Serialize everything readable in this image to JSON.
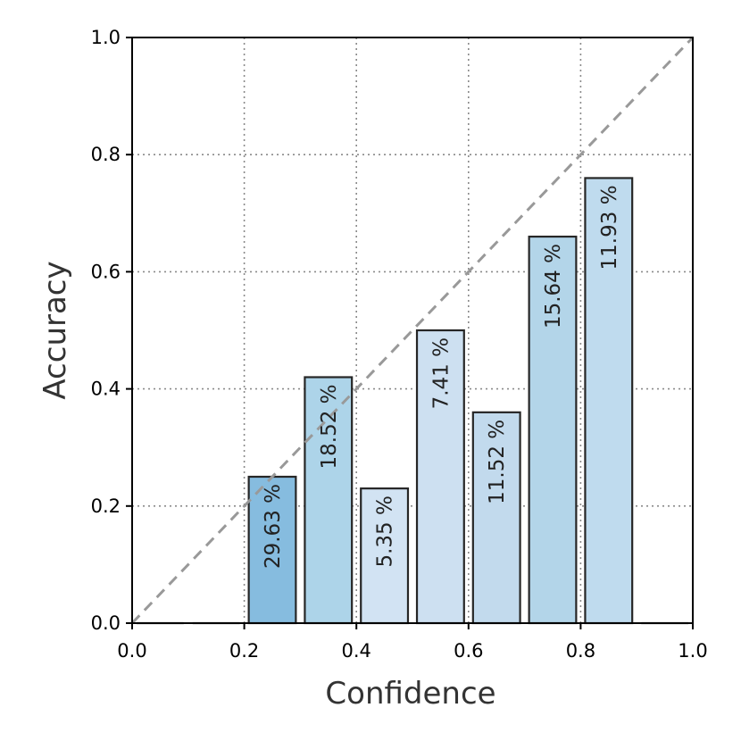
{
  "chart_data": {
    "type": "bar",
    "xlabel": "Confidence",
    "ylabel": "Accuracy",
    "xlim": [
      0.0,
      1.0
    ],
    "ylim": [
      0.0,
      1.0
    ],
    "grid": true,
    "reference_line": "perfect calibration diagonal (y = x), dashed gray",
    "x_ticks": [
      "0.0",
      "0.2",
      "0.4",
      "0.6",
      "0.8",
      "1.0"
    ],
    "y_ticks": [
      "0.0",
      "0.2",
      "0.4",
      "0.6",
      "0.8",
      "1.0"
    ],
    "bin_width": 0.1,
    "bars": [
      {
        "bin_start": 0.0,
        "bin_end": 0.1,
        "accuracy": 0.0,
        "label": "",
        "color": "#ffffff"
      },
      {
        "bin_start": 0.1,
        "bin_end": 0.2,
        "accuracy": 0.0,
        "label": "",
        "color": "#ffffff"
      },
      {
        "bin_start": 0.2,
        "bin_end": 0.3,
        "accuracy": 0.25,
        "label": "29.63 %",
        "color": "#86bcdf"
      },
      {
        "bin_start": 0.3,
        "bin_end": 0.4,
        "accuracy": 0.42,
        "label": "18.52 %",
        "color": "#add4e9"
      },
      {
        "bin_start": 0.4,
        "bin_end": 0.5,
        "accuracy": 0.23,
        "label": "5.35 %",
        "color": "#d2e3f3"
      },
      {
        "bin_start": 0.5,
        "bin_end": 0.6,
        "accuracy": 0.5,
        "label": "7.41 %",
        "color": "#cde0f1"
      },
      {
        "bin_start": 0.6,
        "bin_end": 0.7,
        "accuracy": 0.36,
        "label": "11.52 %",
        "color": "#c2daed"
      },
      {
        "bin_start": 0.7,
        "bin_end": 0.8,
        "accuracy": 0.66,
        "label": "15.64 %",
        "color": "#b3d5e9"
      },
      {
        "bin_start": 0.8,
        "bin_end": 0.9,
        "accuracy": 0.76,
        "label": "11.93 %",
        "color": "#bfdbee"
      },
      {
        "bin_start": 0.9,
        "bin_end": 1.0,
        "accuracy": 0.0,
        "label": "",
        "color": "#ffffff"
      }
    ]
  }
}
